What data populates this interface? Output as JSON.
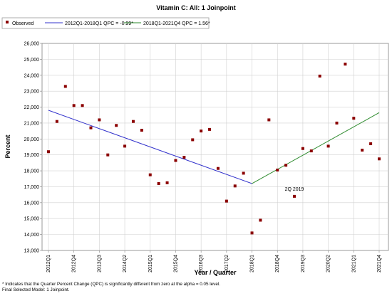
{
  "chart_data": {
    "type": "scatter",
    "title": "Vitamin C: All: 1 Joinpoint",
    "xlabel": "Year / Quarter",
    "ylabel": "Percent",
    "ylim": [
      13000,
      26000
    ],
    "yticks": [
      13000,
      14000,
      15000,
      16000,
      17000,
      18000,
      19000,
      20000,
      21000,
      22000,
      23000,
      24000,
      25000,
      26000
    ],
    "ytick_labels": [
      "13,000",
      "14,000",
      "15,000",
      "16,000",
      "17,000",
      "18,000",
      "19,000",
      "20,000",
      "21,000",
      "22,000",
      "23,000",
      "24,000",
      "25,000",
      "26,000"
    ],
    "x_categories": [
      "2012Q1",
      "2012Q2",
      "2012Q3",
      "2012Q4",
      "2013Q1",
      "2013Q2",
      "2013Q3",
      "2013Q4",
      "2014Q1",
      "2014Q2",
      "2014Q3",
      "2014Q4",
      "2015Q1",
      "2015Q2",
      "2015Q3",
      "2015Q4",
      "2016Q1",
      "2016Q2",
      "2016Q3",
      "2016Q4",
      "2017Q1",
      "2017Q2",
      "2017Q3",
      "2017Q4",
      "2018Q1",
      "2018Q2",
      "2018Q3",
      "2018Q4",
      "2019Q1",
      "2019Q2",
      "2019Q3",
      "2019Q4",
      "2020Q1",
      "2020Q2",
      "2020Q3",
      "2020Q4",
      "2021Q1",
      "2021Q2",
      "2021Q3",
      "2021Q4"
    ],
    "xtick_labels": [
      "2012Q1",
      "2012Q4",
      "2013Q3",
      "2014Q2",
      "2015Q1",
      "2015Q4",
      "2016Q3",
      "2017Q2",
      "2018Q1",
      "2018Q4",
      "2019Q3",
      "2020Q2",
      "2021Q1",
      "2021Q4"
    ],
    "legend": {
      "position": "top",
      "items": [
        {
          "label": "Observed",
          "kind": "marker",
          "color": "#8b0000"
        },
        {
          "label": "2012Q1-2018Q1 QPC = -0.99*",
          "kind": "line",
          "color": "#3333cc"
        },
        {
          "label": "2018Q1-2021Q4 QPC = 1.56*",
          "kind": "line",
          "color": "#2e8b2e"
        }
      ]
    },
    "series": [
      {
        "name": "Observed",
        "color": "#8b0000",
        "values": [
          19200,
          21100,
          23300,
          22100,
          22100,
          20700,
          21200,
          19000,
          20850,
          19550,
          21100,
          20550,
          17750,
          17200,
          17250,
          18650,
          18850,
          19950,
          20500,
          20600,
          18150,
          16100,
          17050,
          17850,
          14100,
          14900,
          21200,
          18050,
          18350,
          16400,
          19400,
          19250,
          23950,
          19550,
          21000,
          24700,
          21300,
          19300,
          19700,
          18750
        ]
      },
      {
        "name": "2012Q1-2018Q1 QPC = -0.99*",
        "color": "#3333cc",
        "kind": "line",
        "x": [
          "2012Q1",
          "2018Q1"
        ],
        "values": [
          21800,
          17200
        ]
      },
      {
        "name": "2018Q1-2021Q4 QPC = 1.56*",
        "color": "#2e8b2e",
        "kind": "line",
        "x": [
          "2018Q1",
          "2021Q4"
        ],
        "values": [
          17200,
          21650
        ]
      }
    ],
    "annotations": [
      {
        "text": "2Q 2019",
        "x": "2019Q2",
        "y": 16400
      }
    ],
    "grid": true
  },
  "footnotes": {
    "line1": "* Indicates that the Quarter Percent Change (QPC) is significantly different from zero at the alpha = 0.05 level.",
    "line2": "Final Selected Model: 1 Joinpoint."
  }
}
